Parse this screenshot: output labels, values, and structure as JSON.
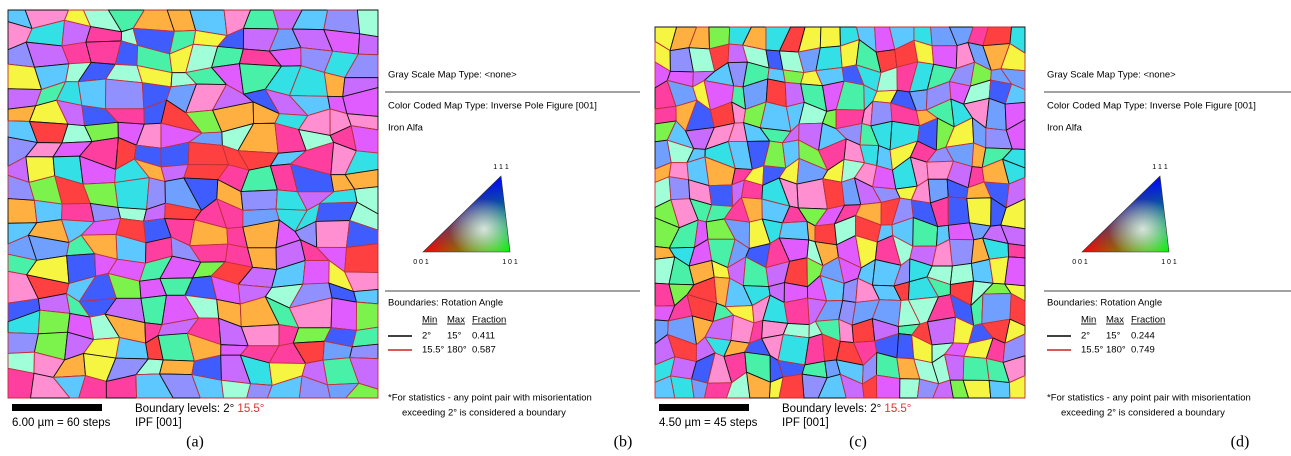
{
  "panels": [
    {
      "caption": "(a)",
      "scale_bar": "6.00 µm = 60 steps",
      "boundary_levels": "Boundary levels: 2°",
      "boundary_high": "15.5°",
      "map_type": "IPF [001]"
    },
    {
      "caption": "(b)",
      "gray_scale": "Gray Scale Map Type: <none>",
      "color_coded": "Color Coded Map Type: Inverse Pole Figure [001]",
      "phase": "Iron Alfa",
      "pole_labels": [
        "1 1 1",
        "0 0 1",
        "1 0 1"
      ],
      "boundaries_title": "Boundaries: Rotation Angle",
      "columns": [
        "Min",
        "Max",
        "Fraction"
      ],
      "rows": [
        [
          "2°",
          "15°",
          0.411
        ],
        [
          "15.5°",
          "180°",
          0.587
        ]
      ],
      "note": [
        "*For statistics - any point pair with misorientation",
        "exceeding 2° is considered a boundary"
      ]
    },
    {
      "caption": "(c)",
      "scale_bar": "4.50 µm = 45 steps",
      "boundary_levels": "Boundary levels: 2°",
      "boundary_high": "15.5°",
      "map_type": "IPF [001]"
    },
    {
      "caption": "(d)",
      "gray_scale": "Gray Scale Map Type: <none>",
      "color_coded": "Color Coded Map Type: Inverse Pole Figure [001]",
      "phase": "Iron Alfa",
      "pole_labels": [
        "1 1 1",
        "0 0 1",
        "1 0 1"
      ],
      "boundaries_title": "Boundaries: Rotation Angle",
      "columns": [
        "Min",
        "Max",
        "Fraction"
      ],
      "rows": [
        [
          "2°",
          "15°",
          0.244
        ],
        [
          "15.5°",
          "180°",
          0.749
        ]
      ],
      "note": [
        "*For statistics - any point pair with misorientation",
        "exceeding 2° is considered a boundary"
      ]
    }
  ]
}
